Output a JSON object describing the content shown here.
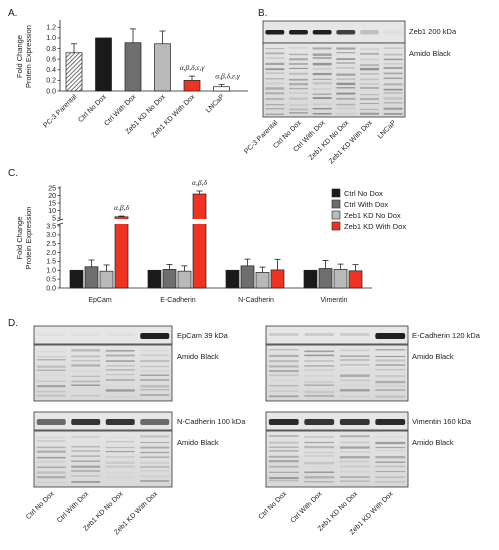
{
  "panel_letters": {
    "a": "A.",
    "b": "B.",
    "c": "C.",
    "d": "D."
  },
  "colors": {
    "black": "#1a1a1a",
    "dark_gray": "#6e6e6e",
    "light_gray": "#b9b9b9",
    "red": "#ee3322",
    "hatch": "#444444"
  },
  "chart_data": [
    {
      "panel": "A",
      "type": "bar",
      "ylabel": "Fold Change Protein Expression",
      "ylim": [
        0,
        1.3
      ],
      "yticks": [
        "0.0",
        "0.2",
        "0.4",
        "0.6",
        "0.8",
        "1.0",
        "1.2"
      ],
      "categories": [
        "PC-3 Parental",
        "Ctrl No Dox",
        "Ctrl With Dox",
        "Zeb1 KD No Dox",
        "Zeb1 KD With Dox",
        "LNCaP"
      ],
      "values": [
        0.72,
        1.0,
        0.91,
        0.89,
        0.2,
        0.08
      ],
      "errors": [
        0.17,
        0.0,
        0.26,
        0.24,
        0.08,
        0.04
      ],
      "fills": [
        "hatch",
        "black",
        "dark_gray",
        "light_gray",
        "red",
        "white"
      ],
      "annotations": [
        "",
        "",
        "",
        "",
        "α,β,δ,ε,γ",
        "α,β,δ,ε,γ"
      ]
    },
    {
      "panel": "C",
      "type": "bar",
      "ylabel": "Fold Change Protein Expression",
      "yticks_lower": [
        "0.0",
        "0.5",
        "1.0",
        "1.5",
        "2.0",
        "2.5",
        "3.0",
        "3.5"
      ],
      "yticks_upper": [
        "5",
        "10",
        "15",
        "20",
        "25"
      ],
      "categories": [
        "EpCam",
        "E-Cadherin",
        "N-Cadherin",
        "Vimentin"
      ],
      "series": [
        {
          "name": "Ctrl No Dox",
          "fill": "black",
          "values": [
            1.0,
            1.0,
            1.0,
            1.0
          ],
          "errors": [
            0,
            0,
            0,
            0
          ]
        },
        {
          "name": "Ctrl With Dox",
          "fill": "dark_gray",
          "values": [
            1.2,
            1.05,
            1.25,
            1.1
          ],
          "errors": [
            0.38,
            0.28,
            0.38,
            0.45
          ]
        },
        {
          "name": "Zeb1 KD No Dox",
          "fill": "light_gray",
          "values": [
            0.95,
            0.95,
            0.88,
            1.05
          ],
          "errors": [
            0.35,
            0.3,
            0.3,
            0.3
          ]
        },
        {
          "name": "Zeb1 KD With Dox",
          "fill": "red",
          "values": [
            5.8,
            21.0,
            1.02,
            0.97
          ],
          "errors": [
            0.5,
            2.0,
            0.6,
            0.35
          ]
        }
      ],
      "annotations": [
        "α,β,δ",
        "α,β,δ",
        "",
        ""
      ]
    }
  ],
  "panel_b": {
    "band_label": "Zeb1 200 kDa",
    "stain_label": "Amido Black",
    "lanes": [
      "PC-3 Parental",
      "Ctrl No Dox",
      "Ctrl With Dox",
      "Zeb1 KD No Dox",
      "Zeb1 KD With Dox",
      "LNCaP"
    ],
    "band_intensity": [
      0.95,
      0.95,
      0.95,
      0.8,
      0.2,
      0.05
    ]
  },
  "panel_d": {
    "stain_label": "Amido Black",
    "lanes": [
      "Ctrl No Dox",
      "Ctrl With Dox",
      "Zeb1 KD No Dox",
      "Zeb1 KD With Dox"
    ],
    "blots": [
      {
        "label": "EpCam 39 kDa",
        "band_intensity": [
          0.05,
          0.05,
          0.05,
          0.95
        ]
      },
      {
        "label": "E-Cadherin 120 kDa",
        "band_intensity": [
          0.15,
          0.15,
          0.15,
          0.95
        ]
      },
      {
        "label": "N-Cadherin 100 kDa",
        "band_intensity": [
          0.6,
          0.85,
          0.85,
          0.6
        ]
      },
      {
        "label": "Vimentin 160 kDa",
        "band_intensity": [
          0.9,
          0.85,
          0.85,
          0.9
        ]
      }
    ]
  }
}
